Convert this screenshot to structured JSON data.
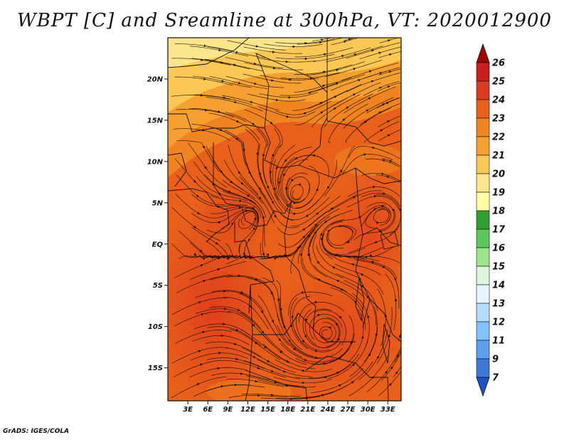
{
  "title": "WBPT [C] and Sreamline at 300hPa, VT: 2020012900",
  "credit": "GrADS: IGES/COLA",
  "map": {
    "variable": "Wet-bulb potential temperature",
    "units": "C",
    "level": "300hPa",
    "valid_time": "2020012900",
    "lon_range_deg_east": [
      0,
      35
    ],
    "lat_range_deg": [
      -19,
      25
    ],
    "lat_ticks": [
      {
        "value": 20,
        "label": "20N"
      },
      {
        "value": 15,
        "label": "15N"
      },
      {
        "value": 10,
        "label": "10N"
      },
      {
        "value": 5,
        "label": "5N"
      },
      {
        "value": 0,
        "label": "EQ"
      },
      {
        "value": -5,
        "label": "5S"
      },
      {
        "value": -10,
        "label": "10S"
      },
      {
        "value": -15,
        "label": "15S"
      }
    ],
    "lon_ticks": [
      {
        "value": 3,
        "label": "3E"
      },
      {
        "value": 6,
        "label": "6E"
      },
      {
        "value": 9,
        "label": "9E"
      },
      {
        "value": 12,
        "label": "12E"
      },
      {
        "value": 15,
        "label": "15E"
      },
      {
        "value": 18,
        "label": "18E"
      },
      {
        "value": 21,
        "label": "21E"
      },
      {
        "value": 24,
        "label": "24E"
      },
      {
        "value": 27,
        "label": "27E"
      },
      {
        "value": 30,
        "label": "30E"
      },
      {
        "value": 33,
        "label": "33E"
      }
    ]
  },
  "colorbar": {
    "labels": [
      "26",
      "25",
      "24",
      "23",
      "22",
      "21",
      "20",
      "19",
      "18",
      "17",
      "16",
      "15",
      "14",
      "13",
      "12",
      "11",
      "9",
      "7"
    ],
    "colors": [
      "#a00000",
      "#c81e1e",
      "#dc3c1e",
      "#e8601a",
      "#f08420",
      "#f5a030",
      "#fbc855",
      "#fbe68c",
      "#ffffa6",
      "#2ea030",
      "#5ac85a",
      "#9ee68c",
      "#ddf5dd",
      "#e6f5ff",
      "#b4dcff",
      "#82c3ff",
      "#5aa0f0",
      "#3c78dc",
      "#1e50c8"
    ]
  }
}
